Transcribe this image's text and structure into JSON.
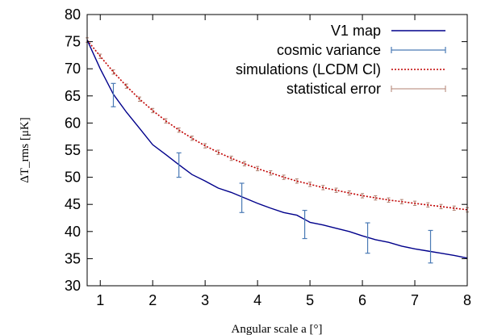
{
  "chart_data": {
    "type": "line",
    "xlabel": "Angular scale a [°]",
    "ylabel": "ΔT_rms [μK]",
    "xlim": [
      0.75,
      8
    ],
    "ylim": [
      30,
      80
    ],
    "xticks": [
      1,
      2,
      3,
      4,
      5,
      6,
      7,
      8
    ],
    "yticks": [
      30,
      35,
      40,
      45,
      50,
      55,
      60,
      65,
      70,
      75,
      80
    ],
    "grid": false,
    "legend_position": "top-right",
    "colors": {
      "v1": "#00008b",
      "cosmic": "#4a7ab5",
      "sim": "#c00000",
      "stat": "#b08070"
    },
    "series": [
      {
        "name": "V1 map",
        "style": "solid",
        "x": [
          0.75,
          1.0,
          1.25,
          1.5,
          1.75,
          2.0,
          2.25,
          2.5,
          2.75,
          3.0,
          3.25,
          3.5,
          3.75,
          4.0,
          4.25,
          4.5,
          4.75,
          5.0,
          5.25,
          5.5,
          5.75,
          6.0,
          6.25,
          6.5,
          6.75,
          7.0,
          7.25,
          7.5,
          7.75,
          8.0
        ],
        "y": [
          75.3,
          70.0,
          65.3,
          62.0,
          59.0,
          56.0,
          54.2,
          52.3,
          50.5,
          49.3,
          48.0,
          47.2,
          46.2,
          45.2,
          44.3,
          43.5,
          43.0,
          41.7,
          41.2,
          40.6,
          40.0,
          39.2,
          38.5,
          38.0,
          37.3,
          36.8,
          36.4,
          36.0,
          35.6,
          35.1
        ]
      },
      {
        "name": "simulations (LCDM Cl)",
        "style": "dotted",
        "x": [
          0.75,
          1.0,
          1.25,
          1.5,
          1.75,
          2.0,
          2.25,
          2.5,
          2.75,
          3.0,
          3.25,
          3.5,
          3.75,
          4.0,
          4.25,
          4.5,
          4.75,
          5.0,
          5.25,
          5.5,
          5.75,
          6.0,
          6.25,
          6.5,
          6.75,
          7.0,
          7.25,
          7.5,
          7.75,
          8.0
        ],
        "y": [
          75.3,
          72.3,
          69.4,
          66.8,
          64.4,
          62.3,
          60.4,
          58.7,
          57.2,
          55.8,
          54.6,
          53.5,
          52.5,
          51.6,
          50.8,
          50.0,
          49.3,
          48.7,
          48.1,
          47.6,
          47.1,
          46.6,
          46.2,
          45.8,
          45.5,
          45.2,
          44.9,
          44.6,
          44.3,
          44.0
        ]
      }
    ],
    "cosmic_variance": {
      "name": "cosmic variance",
      "x": [
        1.25,
        2.5,
        3.7,
        4.9,
        6.1,
        7.3
      ],
      "low": [
        63.0,
        50.0,
        43.5,
        38.7,
        36.0,
        34.2
      ],
      "high": [
        67.3,
        54.5,
        48.9,
        43.9,
        41.6,
        40.2
      ]
    },
    "statistical_error": {
      "name": "statistical error",
      "half_width": 0.4
    },
    "legend": [
      "V1 map",
      "cosmic variance",
      "simulations (LCDM Cl)",
      "statistical error"
    ]
  }
}
